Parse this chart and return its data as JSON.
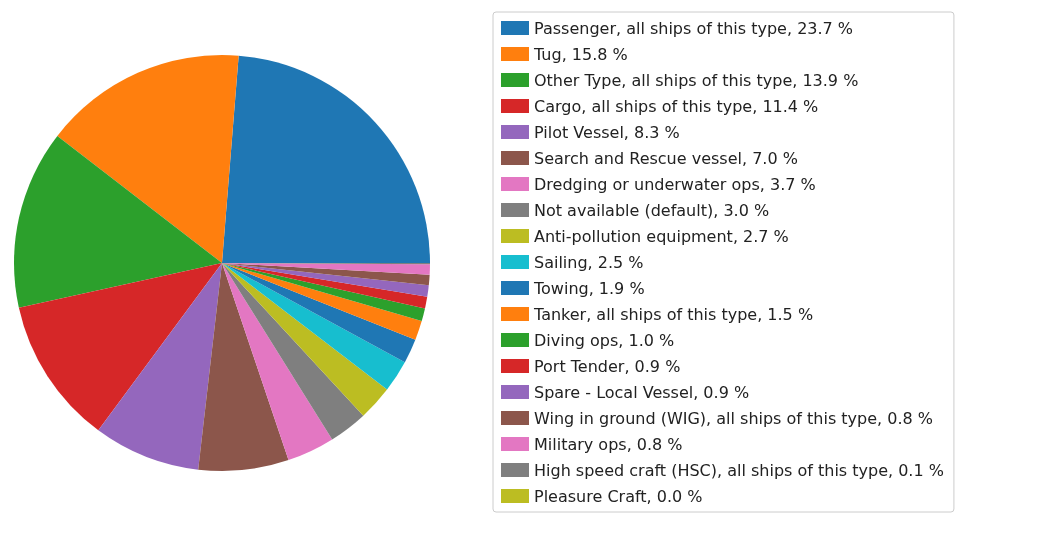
{
  "chart_data": {
    "type": "pie",
    "legend": "right",
    "categories": [
      "Passenger, all ships of this type, 23.7 %",
      "Tug, 15.8 %",
      "Other Type, all ships of this type, 13.9 %",
      "Cargo, all ships of this type, 11.4 %",
      "Pilot Vessel, 8.3 %",
      "Search and Rescue vessel, 7.0 %",
      "Dredging or underwater ops, 3.7 %",
      "Not available (default), 3.0 %",
      "Anti-pollution equipment, 2.7 %",
      "Sailing, 2.5 %",
      "Towing, 1.9 %",
      "Tanker, all ships of this type, 1.5 %",
      "Diving ops, 1.0 %",
      "Port Tender, 0.9 %",
      "Spare - Local Vessel, 0.9 %",
      "Wing in ground (WIG), all ships of this type, 0.8 %",
      "Military ops, 0.8 %",
      "High speed craft (HSC), all ships of this type, 0.1 %",
      "Pleasure Craft, 0.0 %"
    ],
    "values": [
      23.7,
      15.8,
      13.9,
      11.4,
      8.3,
      7.0,
      3.7,
      3.0,
      2.7,
      2.5,
      1.9,
      1.5,
      1.0,
      0.9,
      0.9,
      0.8,
      0.8,
      0.1,
      0.0
    ],
    "colors": [
      "#1f77b4",
      "#ff7f0e",
      "#2ca02c",
      "#d62728",
      "#9467bd",
      "#8c564b",
      "#e377c2",
      "#7f7f7f",
      "#bcbd22",
      "#17becf",
      "#1f77b4",
      "#ff7f0e",
      "#2ca02c",
      "#d62728",
      "#9467bd",
      "#8c564b",
      "#e377c2",
      "#7f7f7f",
      "#bcbd22"
    ]
  }
}
